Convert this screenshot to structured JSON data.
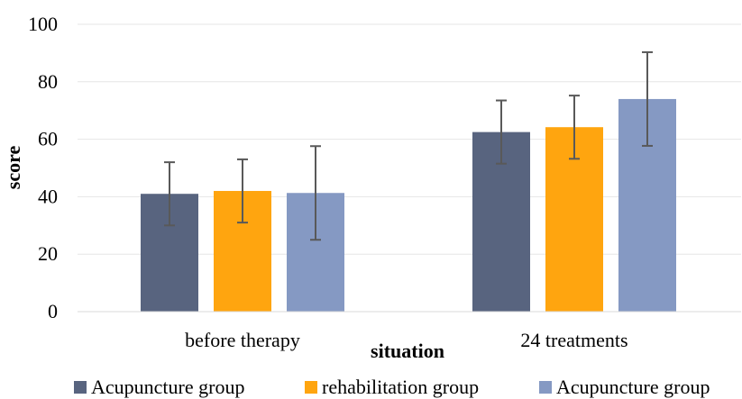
{
  "chart_data": {
    "type": "bar",
    "title": "",
    "xlabel": "situation",
    "ylabel": "score",
    "ylim": [
      0,
      100
    ],
    "yticks": [
      0,
      20,
      40,
      60,
      80,
      100
    ],
    "grid": "horizontal",
    "legend_position": "bottom",
    "categories": [
      "before therapy",
      "24 treatments"
    ],
    "series": [
      {
        "name": "Acupuncture group",
        "color": "#58647f",
        "values": [
          41,
          62.5
        ],
        "error": [
          11,
          11
        ]
      },
      {
        "name": "rehabilitation group",
        "color": "#ffa50f",
        "values": [
          42,
          64.2
        ],
        "error": [
          11,
          11
        ]
      },
      {
        "name": "Acupuncture group",
        "color": "#8599c3",
        "values": [
          41.3,
          74
        ],
        "error": [
          16.3,
          16.3
        ]
      }
    ]
  }
}
